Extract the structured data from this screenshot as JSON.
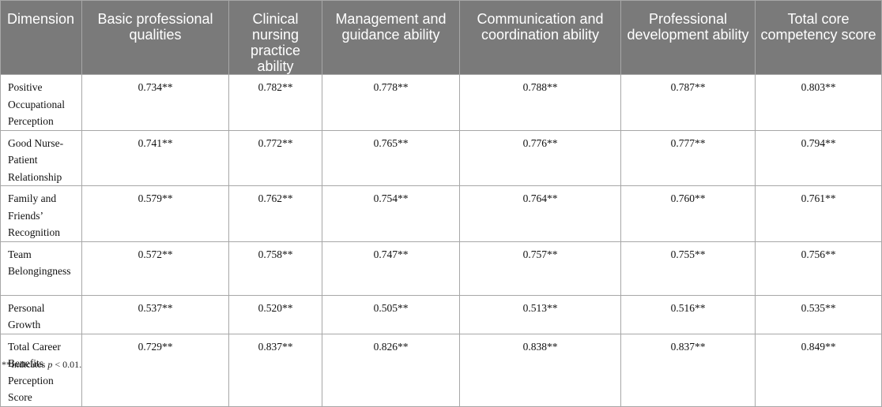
{
  "table": {
    "headers": [
      "Dimension",
      "Basic professional qualities",
      "Clinical nursing practice ability",
      "Management and guidance ability",
      "Communication and coordination ability",
      "Professional development ability",
      "Total core competency score"
    ],
    "rows": [
      {
        "dimension": "Positive Occupational Perception",
        "values": [
          "0.734**",
          "0.782**",
          "0.778**",
          "0.788**",
          "0.787**",
          "0.803**"
        ]
      },
      {
        "dimension": "Good Nurse-Patient Relationship",
        "values": [
          "0.741**",
          "0.772**",
          "0.765**",
          "0.776**",
          "0.777**",
          "0.794**"
        ]
      },
      {
        "dimension": "Family and Friends’ Recognition",
        "values": [
          "0.579**",
          "0.762**",
          "0.754**",
          "0.764**",
          "0.760**",
          "0.761**"
        ]
      },
      {
        "dimension": "Team Belongingness",
        "values": [
          "0.572**",
          "0.758**",
          "0.747**",
          "0.757**",
          "0.755**",
          "0.756**"
        ]
      },
      {
        "dimension": "Personal Growth",
        "values": [
          "0.537**",
          "0.520**",
          "0.505**",
          "0.513**",
          "0.516**",
          "0.535**"
        ]
      },
      {
        "dimension": "Total Career Benefits Perception Score",
        "values": [
          "0.729**",
          "0.837**",
          "0.826**",
          "0.838**",
          "0.837**",
          "0.849**"
        ]
      }
    ]
  },
  "footnote": {
    "prefix": "**Indicates ",
    "variable": "p",
    "suffix": " < 0.01."
  }
}
